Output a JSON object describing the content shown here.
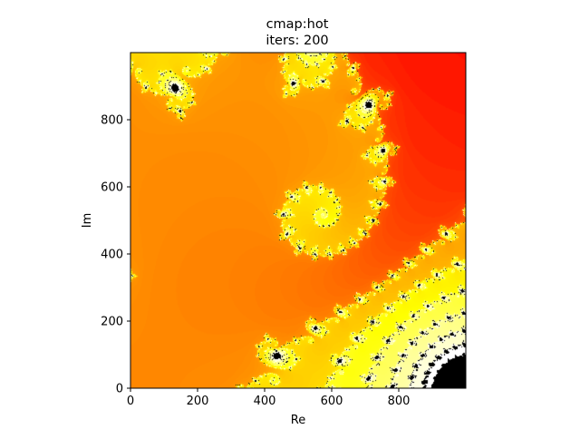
{
  "chart_data": {
    "type": "heatmap",
    "title_line1": "cmap:hot",
    "title_line2": "iters: 200",
    "xlabel": "Re",
    "ylabel": "Im",
    "xlim": [
      0,
      1000
    ],
    "ylim": [
      0,
      1000
    ],
    "x_ticks": [
      0,
      200,
      400,
      600,
      800
    ],
    "y_ticks": [
      0,
      200,
      400,
      600,
      800
    ],
    "colormap": "hot",
    "max_iterations": 200,
    "origin": "lower",
    "grid": false,
    "legend": "none"
  }
}
